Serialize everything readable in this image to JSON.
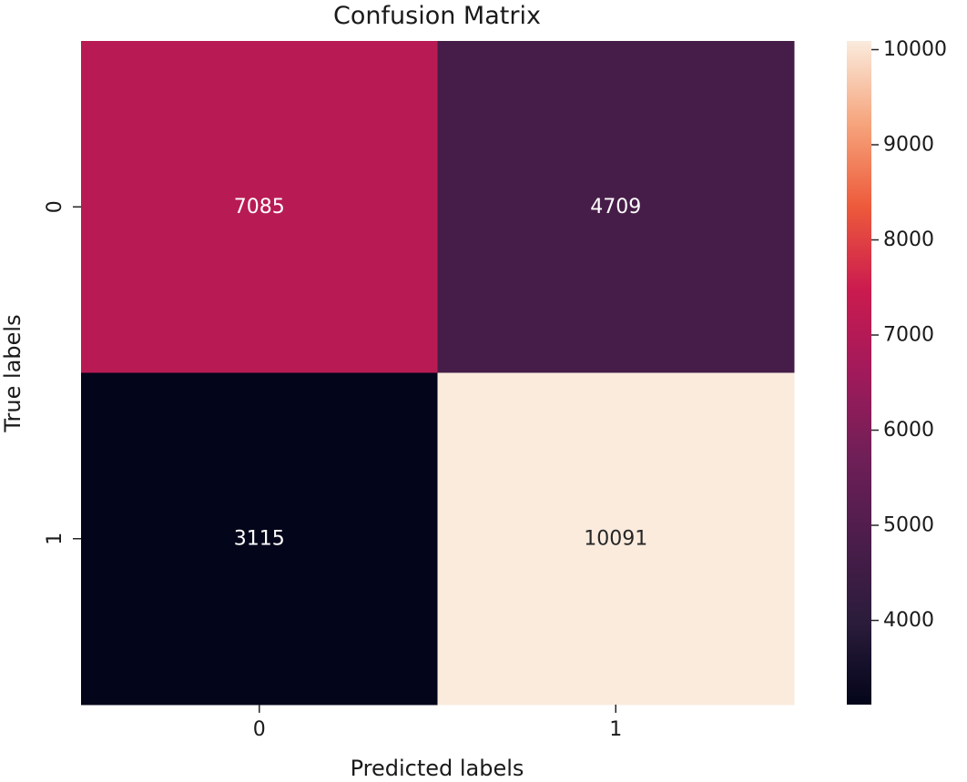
{
  "chart_data": {
    "type": "heatmap",
    "title": "Confusion Matrix",
    "xlabel": "Predicted labels",
    "ylabel": "True labels",
    "x_categories": [
      "0",
      "1"
    ],
    "y_categories": [
      "0",
      "1"
    ],
    "values": [
      [
        7085,
        4709
      ],
      [
        3115,
        10091
      ]
    ],
    "colormap": "rocket",
    "colorbar": {
      "range": [
        3115,
        10091
      ],
      "ticks": [
        4000,
        5000,
        6000,
        7000,
        8000,
        9000,
        10000
      ],
      "tick_labels": [
        "4000",
        "5000",
        "6000",
        "7000",
        "8000",
        "9000",
        "10000"
      ]
    },
    "annotation_colors": {
      "on_dark": "#ffffff",
      "on_light": "#262626"
    }
  }
}
